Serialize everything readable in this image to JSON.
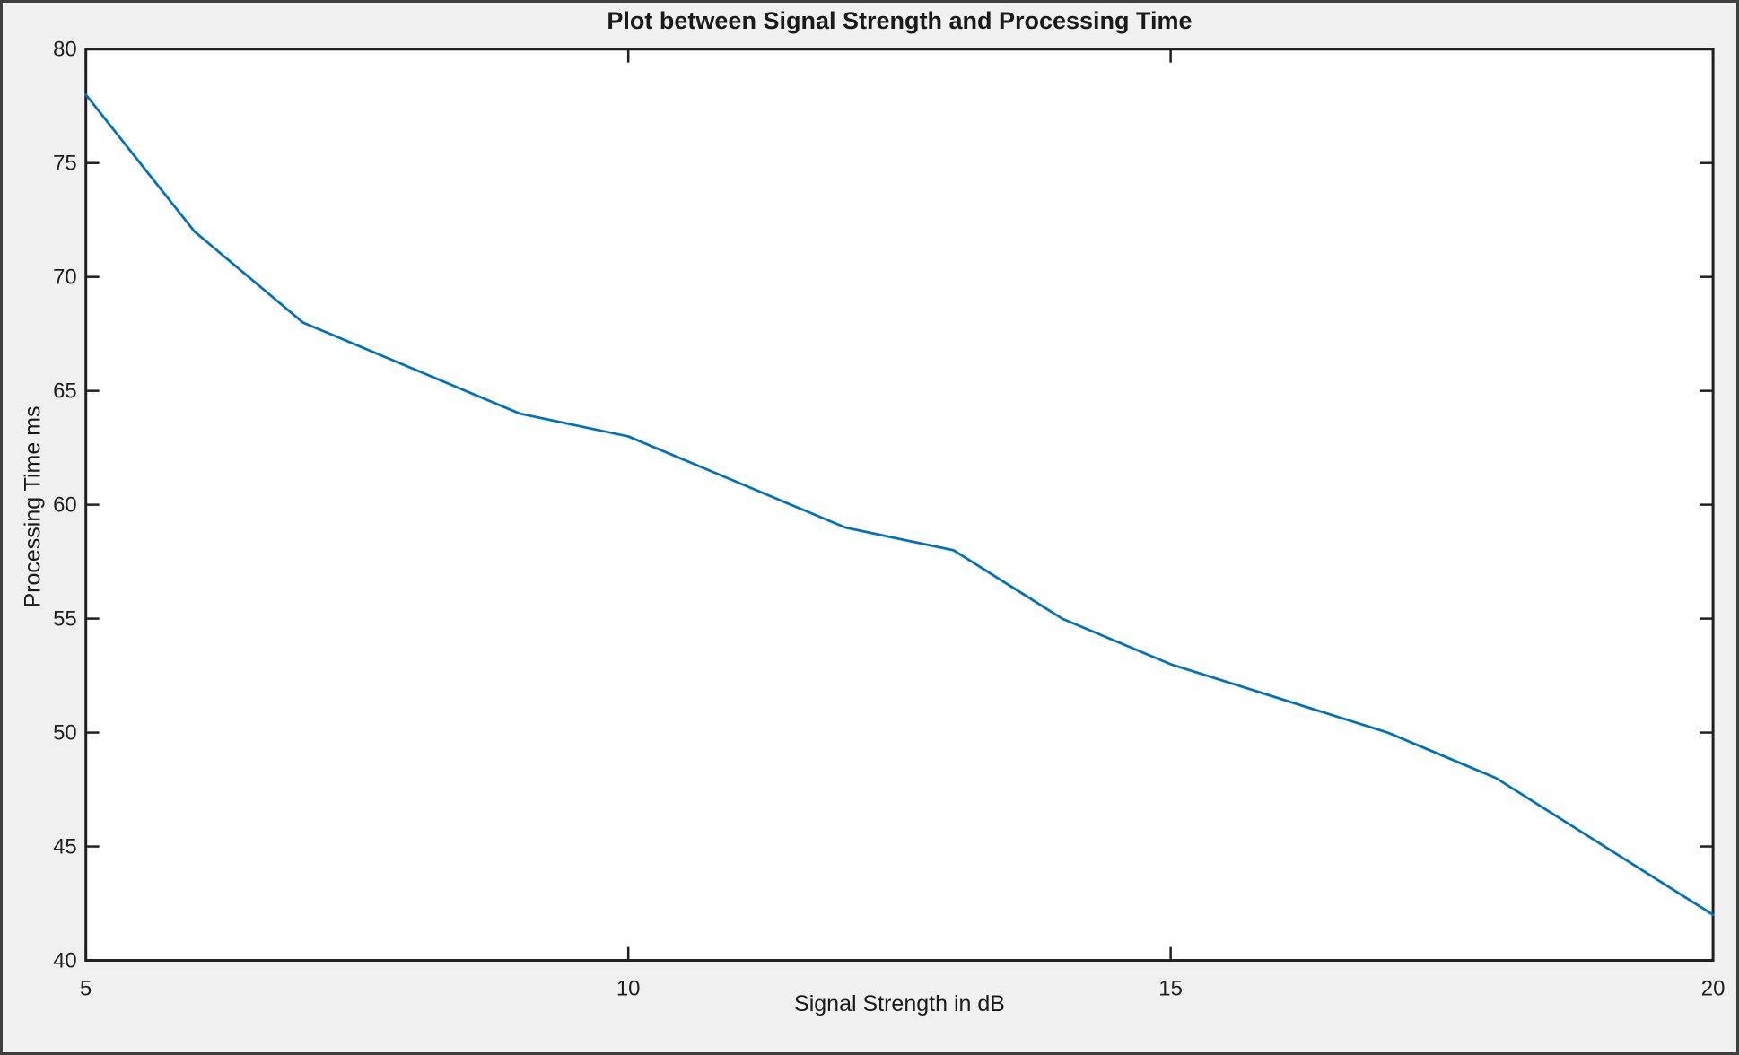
{
  "window": {
    "background_color": "#f0f0f0",
    "frame_color": "#3f3f3f"
  },
  "chart_data": {
    "type": "line",
    "title": "Plot between Signal Strength and Processing Time",
    "xlabel": "Signal Strength in dB",
    "ylabel": "Processing Time ms",
    "x": [
      5,
      6,
      7,
      8,
      9,
      10,
      11,
      12,
      13,
      14,
      15,
      16,
      17,
      18,
      19,
      20
    ],
    "y": [
      78,
      72,
      68,
      66,
      64,
      63,
      61,
      59,
      58,
      55,
      53,
      51.5,
      50,
      48,
      45,
      42
    ],
    "xlim": [
      5,
      20
    ],
    "ylim": [
      40,
      80
    ],
    "x_ticks": [
      5,
      10,
      15,
      20
    ],
    "y_ticks": [
      40,
      45,
      50,
      55,
      60,
      65,
      70,
      75,
      80
    ],
    "grid": false,
    "legend": "none",
    "line_color": "#0072BD",
    "axis_color": "#1f1f1f",
    "plot_bg": "#ffffff"
  }
}
